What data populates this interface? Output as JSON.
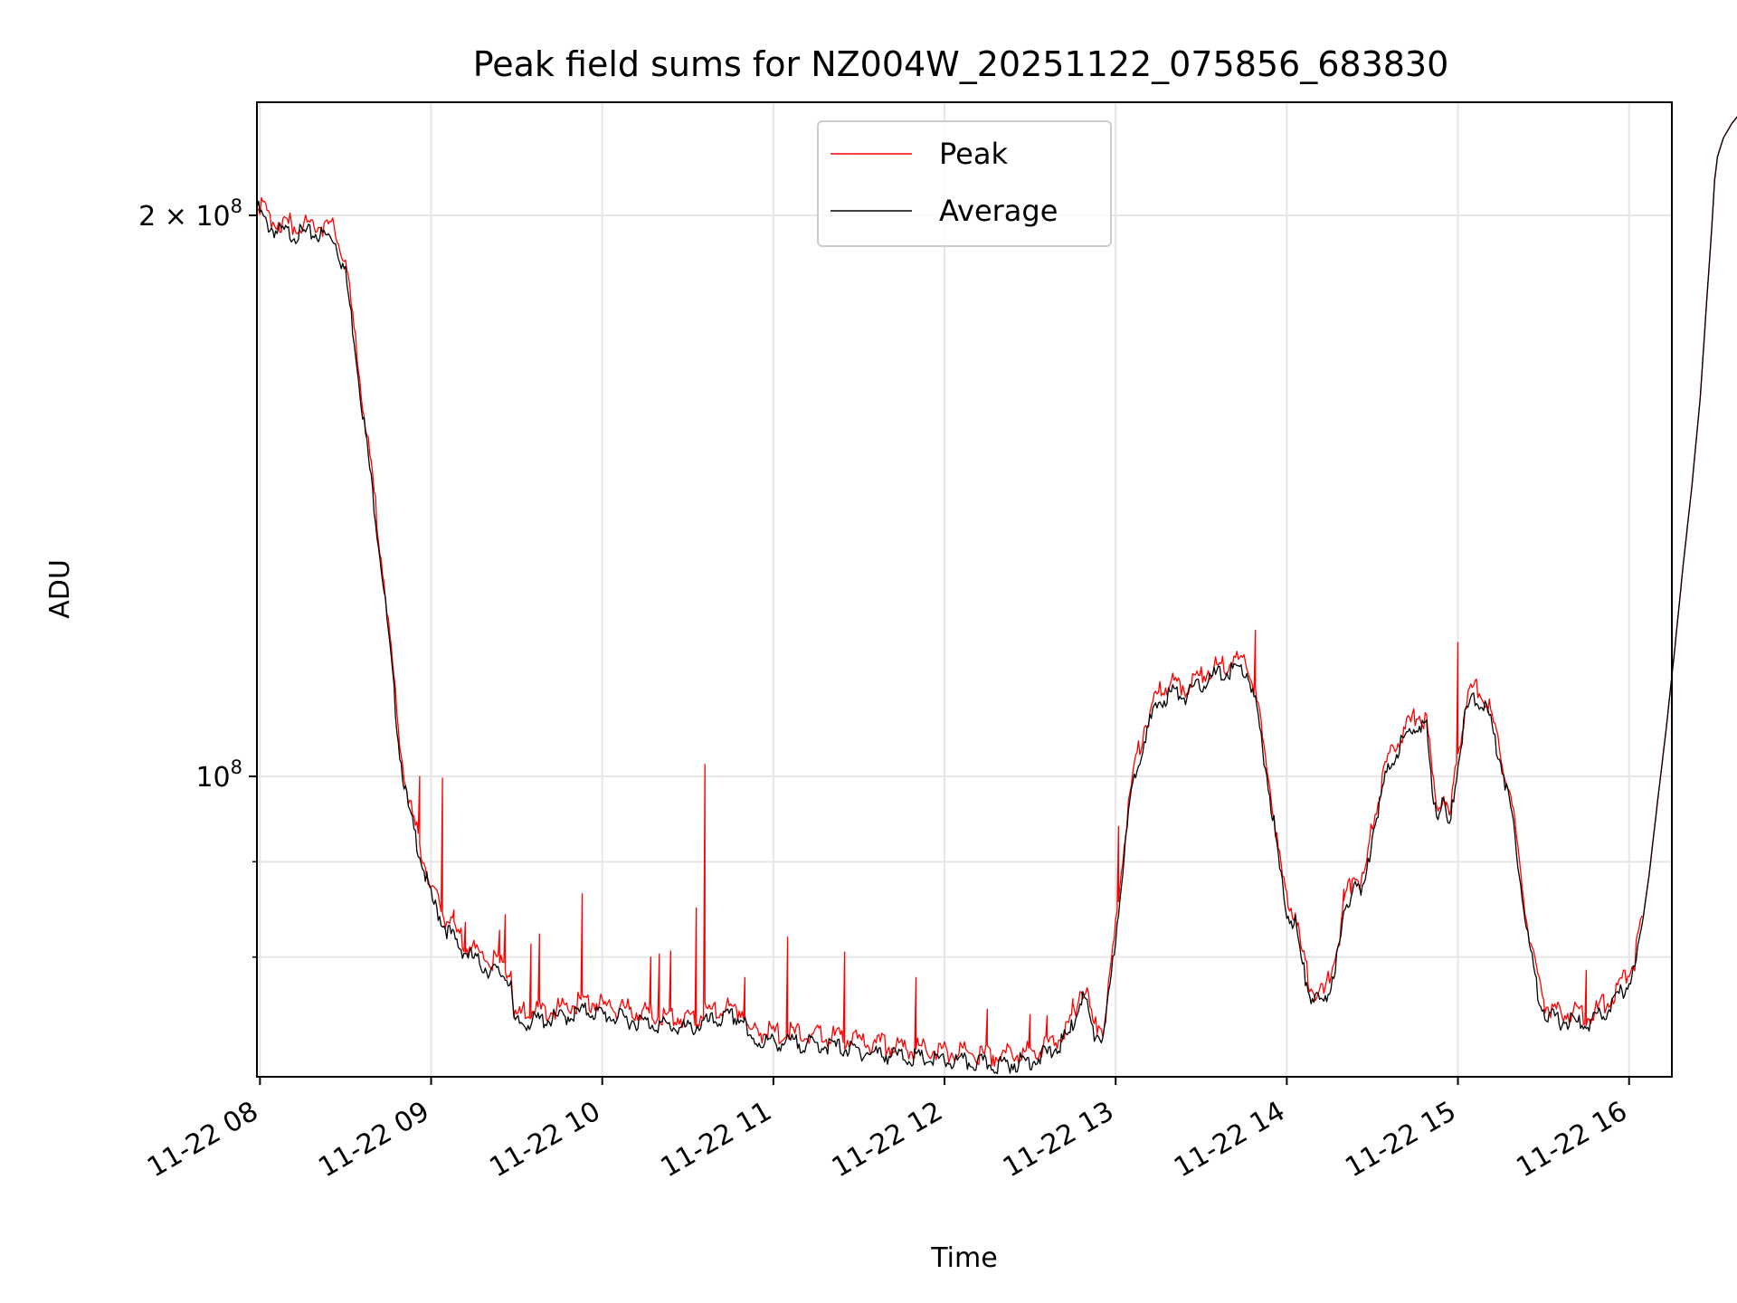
{
  "chart_data": {
    "type": "line",
    "title": "Peak field sums for NZ004W_20251122_075856_683830",
    "xlabel": "Time",
    "ylabel": "ADU",
    "x_date": "2025-11-22",
    "xlim": [
      "2025-11-22 07:58:56",
      "2025-11-22 16:15:00"
    ],
    "ylim": [
      69000000,
      230000000
    ],
    "yscale": "log",
    "x_ticks": [
      "11-22 08",
      "11-22 09",
      "11-22 10",
      "11-22 11",
      "11-22 12",
      "11-22 13",
      "11-22 14",
      "11-22 15",
      "11-22 16"
    ],
    "x_tick_times": [
      "08:00",
      "09:00",
      "10:00",
      "11:00",
      "12:00",
      "13:00",
      "14:00",
      "15:00",
      "16:00"
    ],
    "y_major_ticks": [
      {
        "value": 100000000,
        "label_mant": "",
        "label_base": "10",
        "label_exp": "8"
      },
      {
        "value": 200000000,
        "label_mant": "2 × ",
        "label_base": "10",
        "label_exp": "8"
      }
    ],
    "y_minor_ticks": [
      80000000,
      90000000
    ],
    "grid": true,
    "legend_position": "upper-center",
    "series": [
      {
        "name": "Average",
        "color": "#000000",
        "points": [
          [
            "07:59",
            202000000
          ],
          [
            "08:02",
            198000000
          ],
          [
            "08:06",
            196000000
          ],
          [
            "08:12",
            195500000
          ],
          [
            "08:20",
            195500000
          ],
          [
            "08:26",
            194500000
          ],
          [
            "08:30",
            186000000
          ],
          [
            "08:33",
            172000000
          ],
          [
            "08:36",
            157000000
          ],
          [
            "08:40",
            140000000
          ],
          [
            "08:43",
            128000000
          ],
          [
            "08:46",
            115000000
          ],
          [
            "08:49",
            103000000
          ],
          [
            "08:52",
            96000000
          ],
          [
            "08:56",
            91000000
          ],
          [
            "09:00",
            86000000
          ],
          [
            "09:05",
            83000000
          ],
          [
            "09:10",
            81000000
          ],
          [
            "09:15",
            79800000
          ],
          [
            "09:20",
            78800000
          ],
          [
            "09:26",
            78200000
          ],
          [
            "09:28",
            77700000
          ],
          [
            "09:29",
            73600000
          ],
          [
            "09:35",
            73900000
          ],
          [
            "09:45",
            74200000
          ],
          [
            "09:55",
            74900000
          ],
          [
            "10:00",
            74500000
          ],
          [
            "10:10",
            74000000
          ],
          [
            "10:20",
            73600000
          ],
          [
            "10:30",
            73200000
          ],
          [
            "10:36",
            73700000
          ],
          [
            "10:45",
            74300000
          ],
          [
            "10:50",
            74000000
          ],
          [
            "10:51",
            72200000
          ],
          [
            "11:00",
            72000000
          ],
          [
            "11:10",
            71900000
          ],
          [
            "11:20",
            71700000
          ],
          [
            "11:30",
            71200000
          ],
          [
            "11:40",
            70900000
          ],
          [
            "11:50",
            70600000
          ],
          [
            "12:00",
            70300000
          ],
          [
            "12:10",
            70200000
          ],
          [
            "12:20",
            70000000
          ],
          [
            "12:30",
            70400000
          ],
          [
            "12:38",
            71200000
          ],
          [
            "12:44",
            72800000
          ],
          [
            "12:48",
            76200000
          ],
          [
            "12:50",
            75500000
          ],
          [
            "12:52",
            72700000
          ],
          [
            "12:56",
            72600000
          ],
          [
            "12:58",
            77000000
          ],
          [
            "13:00",
            82000000
          ],
          [
            "13:03",
            91000000
          ],
          [
            "13:06",
            99000000
          ],
          [
            "13:10",
            105000000
          ],
          [
            "13:15",
            109500000
          ],
          [
            "13:20",
            111000000
          ],
          [
            "13:25",
            110500000
          ],
          [
            "13:30",
            112000000
          ],
          [
            "13:35",
            113300000
          ],
          [
            "13:40",
            113800000
          ],
          [
            "13:42",
            114300000
          ],
          [
            "13:46",
            113800000
          ],
          [
            "13:49",
            109300000
          ],
          [
            "13:52",
            102500000
          ],
          [
            "13:55",
            95500000
          ],
          [
            "13:58",
            88000000
          ],
          [
            "14:00",
            84500000
          ],
          [
            "14:03",
            83500000
          ],
          [
            "14:05",
            79600000
          ],
          [
            "14:08",
            76600000
          ],
          [
            "14:10",
            75800000
          ],
          [
            "14:13",
            75500000
          ],
          [
            "14:15",
            77000000
          ],
          [
            "14:18",
            80500000
          ],
          [
            "14:21",
            85300000
          ],
          [
            "14:24",
            88000000
          ],
          [
            "14:26",
            86300000
          ],
          [
            "14:28",
            88500000
          ],
          [
            "14:30",
            93500000
          ],
          [
            "14:34",
            99000000
          ],
          [
            "14:38",
            103000000
          ],
          [
            "14:42",
            105000000
          ],
          [
            "14:46",
            106800000
          ],
          [
            "14:49",
            106000000
          ],
          [
            "14:51",
            98500000
          ],
          [
            "14:53",
            95500000
          ],
          [
            "14:55",
            97000000
          ],
          [
            "14:57",
            93400000
          ],
          [
            "15:00",
            102000000
          ],
          [
            "15:03",
            108500000
          ],
          [
            "15:06",
            110300000
          ],
          [
            "15:10",
            108800000
          ],
          [
            "15:15",
            102000000
          ],
          [
            "15:19",
            95300000
          ],
          [
            "15:22",
            88000000
          ],
          [
            "15:25",
            81000000
          ],
          [
            "15:28",
            76700000
          ],
          [
            "15:31",
            74400000
          ],
          [
            "15:35",
            74000000
          ],
          [
            "15:40",
            73800000
          ],
          [
            "15:45",
            73600000
          ],
          [
            "15:50",
            74300000
          ],
          [
            "15:54",
            75400000
          ],
          [
            "15:58",
            76800000
          ],
          [
            "16:02",
            78800000
          ],
          [
            "16:04",
            82000000
          ],
          [
            "16:07",
            88500000
          ],
          [
            "16:10",
            97000000
          ],
          [
            "16:13",
            106000000
          ],
          [
            "16:16",
            117000000
          ],
          [
            "16:19",
            130000000
          ],
          [
            "16:22",
            143000000
          ],
          [
            "16:25",
            160000000
          ],
          [
            "16:27",
            178000000
          ],
          [
            "16:29",
            197000000
          ],
          [
            "16:30",
            209000000
          ],
          [
            "16:31",
            215000000
          ],
          [
            "16:33",
            220000000
          ],
          [
            "16:36",
            224000000
          ],
          [
            "16:39",
            227000000
          ],
          [
            "16:42",
            230000000
          ]
        ]
      },
      {
        "name": "Peak",
        "color": "#ff0000",
        "offset_ratio": 1.012,
        "spikes": [
          [
            "08:56",
            100000000
          ],
          [
            "09:04",
            99800000
          ],
          [
            "09:08",
            84800000
          ],
          [
            "09:12",
            83500000
          ],
          [
            "09:24",
            82700000
          ],
          [
            "09:26",
            84300000
          ],
          [
            "09:35",
            81300000
          ],
          [
            "09:38",
            82300000
          ],
          [
            "09:53",
            86500000
          ],
          [
            "10:17",
            80000000
          ],
          [
            "10:20",
            80300000
          ],
          [
            "10:24",
            80600000
          ],
          [
            "10:33",
            85000000
          ],
          [
            "10:36",
            101500000
          ],
          [
            "10:50",
            78000000
          ],
          [
            "11:05",
            82000000
          ],
          [
            "11:25",
            80500000
          ],
          [
            "11:50",
            78000000
          ],
          [
            "12:15",
            75000000
          ],
          [
            "12:30",
            74500000
          ],
          [
            "12:36",
            74400000
          ],
          [
            "12:45",
            76000000
          ],
          [
            "13:01",
            94000000
          ],
          [
            "13:49",
            119800000
          ],
          [
            "14:20",
            87000000
          ],
          [
            "15:00",
            118000000
          ],
          [
            "15:45",
            78700000
          ]
        ]
      }
    ]
  }
}
